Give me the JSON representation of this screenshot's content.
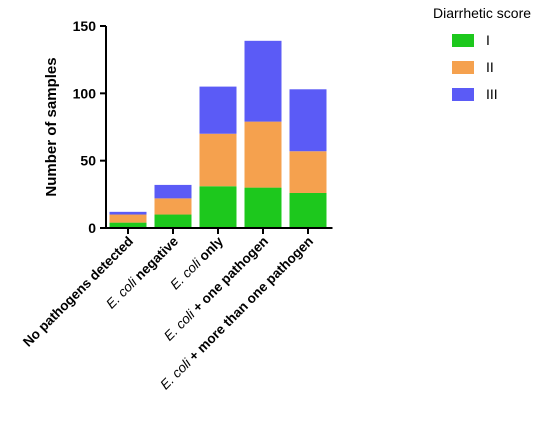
{
  "chart_data": {
    "type": "bar",
    "stacked": true,
    "ylabel": "Number of samples",
    "xlabel": "",
    "ylim": [
      0,
      150
    ],
    "yticks": [
      "0",
      "50",
      "100",
      "150"
    ],
    "categories": [
      {
        "italic": "",
        "rest": "No pathogens detected"
      },
      {
        "italic": "E. coli",
        "rest": " negative"
      },
      {
        "italic": "E. coli",
        "rest": " only"
      },
      {
        "italic": "E. coli",
        "rest": " + one pathogen"
      },
      {
        "italic": "E. coli",
        "rest": " + more than one pathogen"
      }
    ],
    "legend": {
      "title": "Diarrhetic score",
      "placement": "top-right"
    },
    "series": [
      {
        "name": "I",
        "color": "#1DC81D",
        "values": [
          4,
          10,
          31,
          30,
          26
        ]
      },
      {
        "name": "II",
        "color": "#F5A14E",
        "values": [
          6,
          12,
          39,
          49,
          31
        ]
      },
      {
        "name": "III",
        "color": "#5B5BF6",
        "values": [
          2,
          10,
          35,
          60,
          46
        ]
      }
    ],
    "grid": false
  }
}
